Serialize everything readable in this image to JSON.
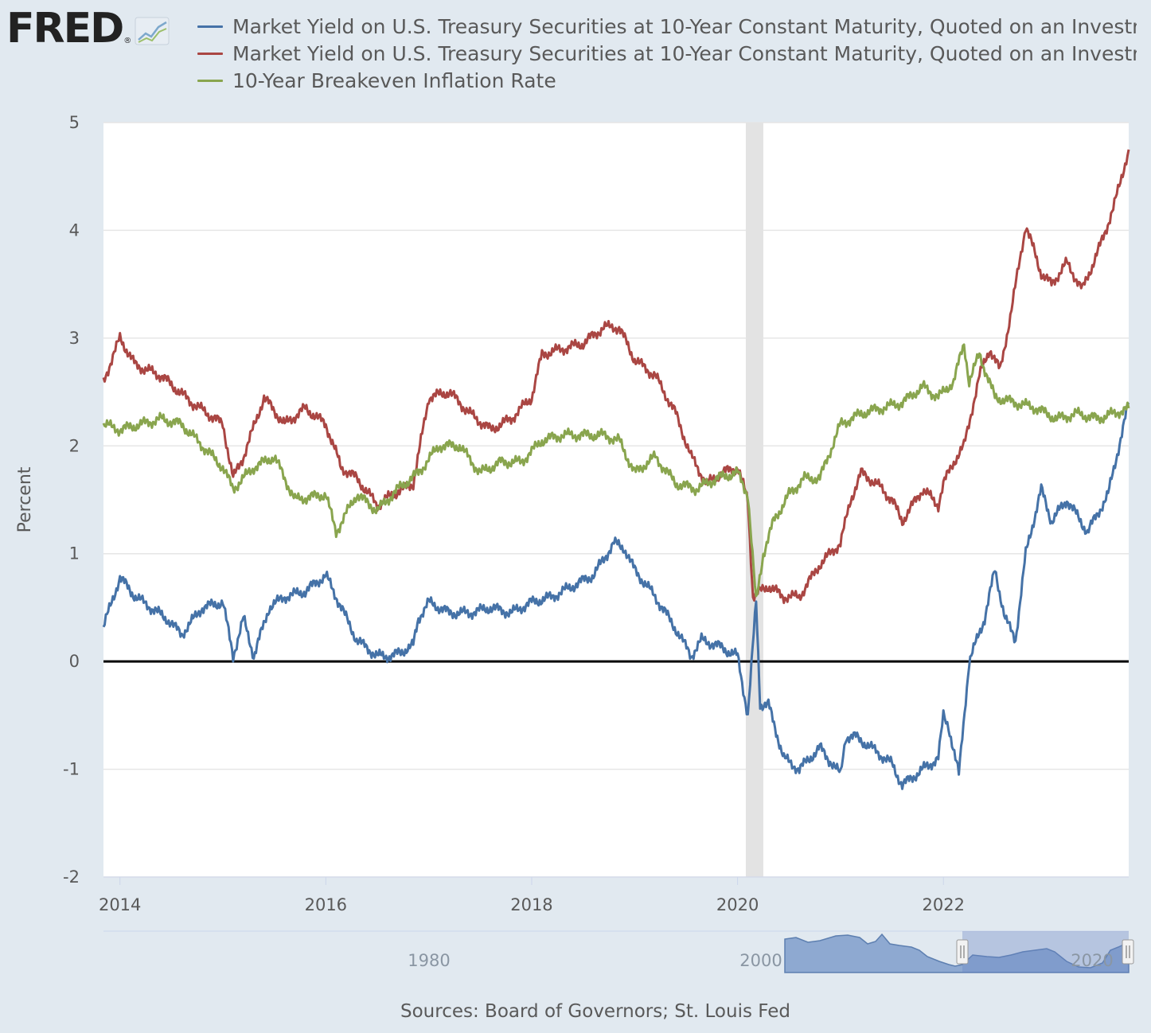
{
  "logo": {
    "text": "FRED",
    "registered": "®"
  },
  "legend": [
    {
      "label": "Market Yield on U.S. Treasury Securities at 10-Year Constant Maturity, Quoted on an Investment",
      "color": "#4572a7"
    },
    {
      "label": "Market Yield on U.S. Treasury Securities at 10-Year Constant Maturity, Quoted on an Investment",
      "color": "#aa4643"
    },
    {
      "label": "10-Year Breakeven Inflation Rate",
      "color": "#89a54e"
    }
  ],
  "chart_data": {
    "type": "line",
    "ylabel": "Percent",
    "ylim": [
      -2,
      5
    ],
    "xlim": [
      2013.84,
      2023.8
    ],
    "yticks": [
      "5",
      "4",
      "3",
      "2",
      "1",
      "0",
      "-1",
      "-2"
    ],
    "xticks": [
      "2014",
      "2016",
      "2018",
      "2020",
      "2022"
    ],
    "recession": [
      2020.08,
      2020.25
    ],
    "series": [
      {
        "color": "#4572a7",
        "x": [
          2013.84,
          2014.0,
          2014.15,
          2014.3,
          2014.45,
          2014.6,
          2014.8,
          2015.0,
          2015.1,
          2015.2,
          2015.3,
          2015.45,
          2015.6,
          2015.8,
          2016.0,
          2016.15,
          2016.3,
          2016.5,
          2016.65,
          2016.85,
          2016.9,
          2017.0,
          2017.2,
          2017.4,
          2017.6,
          2017.8,
          2018.0,
          2018.2,
          2018.4,
          2018.6,
          2018.8,
          2018.9,
          2019.0,
          2019.2,
          2019.4,
          2019.55,
          2019.65,
          2019.8,
          2020.0,
          2020.1,
          2020.18,
          2020.22,
          2020.3,
          2020.45,
          2020.6,
          2020.8,
          2021.0,
          2021.05,
          2021.15,
          2021.3,
          2021.5,
          2021.6,
          2021.8,
          2021.95,
          2022.0,
          2022.05,
          2022.15,
          2022.25,
          2022.4,
          2022.5,
          2022.6,
          2022.7,
          2022.8,
          2022.95,
          2023.05,
          2023.2,
          2023.4,
          2023.6,
          2023.8
        ],
        "y": [
          0.32,
          0.78,
          0.6,
          0.5,
          0.4,
          0.25,
          0.5,
          0.55,
          0.05,
          0.4,
          0.05,
          0.5,
          0.6,
          0.65,
          0.8,
          0.5,
          0.2,
          0.05,
          0.05,
          0.15,
          0.4,
          0.55,
          0.45,
          0.45,
          0.5,
          0.45,
          0.55,
          0.6,
          0.7,
          0.8,
          1.1,
          1.05,
          0.85,
          0.6,
          0.3,
          0.05,
          0.2,
          0.15,
          0.05,
          -0.5,
          0.55,
          -0.4,
          -0.4,
          -0.9,
          -1.0,
          -0.8,
          -1.05,
          -0.7,
          -0.7,
          -0.8,
          -0.95,
          -1.15,
          -1.0,
          -0.9,
          -0.5,
          -0.6,
          -1.05,
          0.0,
          0.4,
          0.85,
          0.4,
          0.2,
          1.0,
          1.6,
          1.3,
          1.5,
          1.2,
          1.55,
          2.4
        ]
      },
      {
        "color": "#aa4643",
        "x": [
          2013.84,
          2014.0,
          2014.15,
          2014.4,
          2014.7,
          2015.0,
          2015.1,
          2015.2,
          2015.4,
          2015.6,
          2015.8,
          2016.0,
          2016.15,
          2016.3,
          2016.5,
          2016.65,
          2016.85,
          2017.0,
          2017.2,
          2017.4,
          2017.6,
          2017.8,
          2018.0,
          2018.1,
          2018.3,
          2018.5,
          2018.7,
          2018.85,
          2019.0,
          2019.2,
          2019.4,
          2019.55,
          2019.7,
          2019.85,
          2020.0,
          2020.1,
          2020.15,
          2020.22,
          2020.3,
          2020.45,
          2020.6,
          2020.8,
          2021.0,
          2021.1,
          2021.2,
          2021.35,
          2021.5,
          2021.6,
          2021.8,
          2021.95,
          2022.0,
          2022.1,
          2022.2,
          2022.35,
          2022.45,
          2022.55,
          2022.65,
          2022.8,
          2022.95,
          2023.05,
          2023.2,
          2023.35,
          2023.5,
          2023.65,
          2023.8
        ],
        "y": [
          2.6,
          3.0,
          2.75,
          2.65,
          2.4,
          2.2,
          1.7,
          1.9,
          2.45,
          2.2,
          2.35,
          2.2,
          1.8,
          1.7,
          1.45,
          1.55,
          1.65,
          2.45,
          2.5,
          2.3,
          2.15,
          2.25,
          2.45,
          2.85,
          2.9,
          2.95,
          3.1,
          3.1,
          2.8,
          2.65,
          2.3,
          1.9,
          1.65,
          1.75,
          1.8,
          1.5,
          0.6,
          0.65,
          0.7,
          0.6,
          0.6,
          0.9,
          1.1,
          1.5,
          1.75,
          1.65,
          1.5,
          1.3,
          1.6,
          1.45,
          1.65,
          1.85,
          2.0,
          2.65,
          2.9,
          2.7,
          3.2,
          4.05,
          3.6,
          3.5,
          3.7,
          3.45,
          3.8,
          4.2,
          4.75
        ]
      },
      {
        "color": "#89a54e",
        "x": [
          2013.84,
          2014.0,
          2014.2,
          2014.4,
          2014.6,
          2014.8,
          2015.0,
          2015.1,
          2015.3,
          2015.5,
          2015.7,
          2016.0,
          2016.1,
          2016.3,
          2016.5,
          2016.7,
          2016.9,
          2017.1,
          2017.3,
          2017.5,
          2017.7,
          2017.9,
          2018.1,
          2018.3,
          2018.5,
          2018.7,
          2018.85,
          2019.0,
          2019.2,
          2019.4,
          2019.6,
          2019.8,
          2020.0,
          2020.1,
          2020.18,
          2020.25,
          2020.35,
          2020.5,
          2020.65,
          2020.8,
          2021.0,
          2021.2,
          2021.4,
          2021.6,
          2021.8,
          2021.95,
          2022.1,
          2022.2,
          2022.25,
          2022.35,
          2022.5,
          2022.7,
          2022.9,
          2023.1,
          2023.3,
          2023.5,
          2023.65,
          2023.8
        ],
        "y": [
          2.2,
          2.15,
          2.2,
          2.25,
          2.2,
          2.0,
          1.8,
          1.6,
          1.8,
          1.9,
          1.5,
          1.55,
          1.2,
          1.55,
          1.4,
          1.6,
          1.75,
          2.0,
          2.0,
          1.75,
          1.85,
          1.85,
          2.05,
          2.1,
          2.1,
          2.1,
          2.05,
          1.75,
          1.9,
          1.65,
          1.6,
          1.7,
          1.75,
          1.55,
          0.55,
          1.0,
          1.3,
          1.55,
          1.7,
          1.7,
          2.2,
          2.3,
          2.35,
          2.4,
          2.55,
          2.45,
          2.6,
          2.95,
          2.6,
          2.85,
          2.45,
          2.4,
          2.35,
          2.25,
          2.3,
          2.25,
          2.3,
          2.35
        ]
      }
    ]
  },
  "navigator": {
    "labels": [
      "1980",
      "2000",
      "2020"
    ]
  },
  "source": "Sources: Board of Governors; St. Louis Fed"
}
